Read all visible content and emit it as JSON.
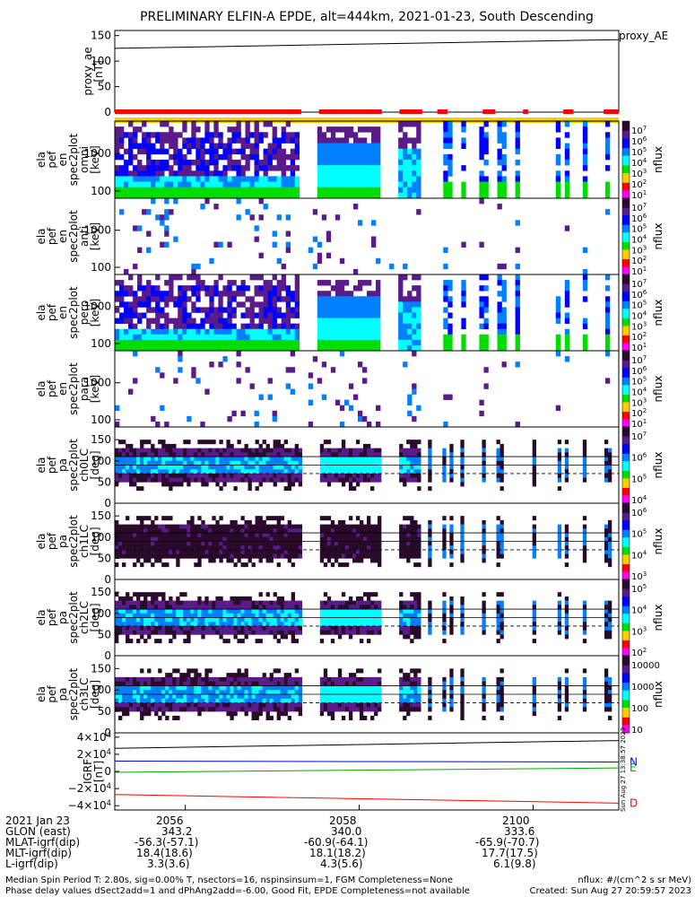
{
  "title": "PRELIMINARY ELFIN-A EPDE, alt=444km, 2021-01-23, South Descending",
  "panels": [
    {
      "ylabel": [
        "proxy_ae",
        "[nT]"
      ],
      "right_label": "proxy_AE",
      "ticks": [
        "150",
        "100",
        "50",
        "0"
      ],
      "kind": "line"
    },
    {
      "ylabel": [
        "ela",
        "pef",
        "en",
        "spec2plot",
        "omni",
        "[keV]"
      ],
      "ticks": [
        "1000",
        "100"
      ],
      "cbar_label": "nflux",
      "cbar_ticks": [
        "10^7",
        "10^6",
        "10^5",
        "10^4",
        "10^3",
        "10^2",
        "10^1"
      ],
      "kind": "energy"
    },
    {
      "ylabel": [
        "ela",
        "pef",
        "en",
        "spec2plot",
        "anti",
        "[keV]"
      ],
      "ticks": [
        "1000",
        "100"
      ],
      "cbar_label": "nflux",
      "cbar_ticks": [
        "10^7",
        "10^6",
        "10^5",
        "10^4",
        "10^3",
        "10^2",
        "10^1"
      ],
      "kind": "energy"
    },
    {
      "ylabel": [
        "ela",
        "pef",
        "en",
        "spec2plot",
        "perp",
        "[keV]"
      ],
      "ticks": [
        "1000",
        "100"
      ],
      "cbar_label": "nflux",
      "cbar_ticks": [
        "10^7",
        "10^6",
        "10^5",
        "10^4",
        "10^3",
        "10^2",
        "10^1"
      ],
      "kind": "energy"
    },
    {
      "ylabel": [
        "ela",
        "pef",
        "en",
        "spec2plot",
        "para",
        "[keV]"
      ],
      "ticks": [
        "1000",
        "100"
      ],
      "cbar_label": "nflux",
      "cbar_ticks": [
        "10^7",
        "10^6",
        "10^5",
        "10^4",
        "10^3",
        "10^2",
        "10^1"
      ],
      "kind": "energy"
    },
    {
      "ylabel": [
        "ela",
        "pef",
        "pa",
        "spec2plot",
        "ch0LC",
        "[deg]"
      ],
      "ticks": [
        "150",
        "100",
        "50",
        "0"
      ],
      "cbar_label": "nflux",
      "cbar_ticks": [
        "10^7",
        "10^6",
        "10^5",
        "10^4"
      ],
      "kind": "pa"
    },
    {
      "ylabel": [
        "ela",
        "pef",
        "pa",
        "spec2plot",
        "ch1LC",
        "[deg]"
      ],
      "ticks": [
        "150",
        "100",
        "50",
        "0"
      ],
      "cbar_label": "nflux",
      "cbar_ticks": [
        "10^6",
        "10^5",
        "10^4",
        "10^3"
      ],
      "kind": "pa"
    },
    {
      "ylabel": [
        "ela",
        "pef",
        "pa",
        "spec2plot",
        "ch2LC",
        "[deg]"
      ],
      "ticks": [
        "150",
        "100",
        "50",
        "0"
      ],
      "cbar_label": "nflux",
      "cbar_ticks": [
        "10^5",
        "10^4",
        "10^3",
        "10^2"
      ],
      "kind": "pa"
    },
    {
      "ylabel": [
        "ela",
        "pef",
        "pa",
        "spec2plot",
        "ch3LC",
        "[deg]"
      ],
      "ticks": [
        "150",
        "100",
        "50",
        "0"
      ],
      "cbar_label": "nflux",
      "cbar_ticks": [
        "10000",
        "1000",
        "100",
        "10"
      ],
      "kind": "pa"
    },
    {
      "ylabel": [
        "IGRF",
        "[nT]"
      ],
      "ticks": [
        "4×10^4",
        "2×10^4",
        "0",
        "−2×10^4",
        "−4×10^4"
      ],
      "components": [
        "N",
        "E",
        "D"
      ],
      "kind": "igrf"
    }
  ],
  "chart_data": {
    "type": "heatmap",
    "title": "PRELIMINARY ELFIN-A EPDE, alt=444km, 2021-01-23, South Descending",
    "x_ticks": [
      "2056",
      "2058",
      "2100"
    ],
    "proxy_ae": {
      "ylabel": "proxy_ae [nT]",
      "ylim": [
        0,
        160
      ],
      "x": [
        0,
        1
      ],
      "y": [
        125,
        142
      ]
    },
    "energy_ylim_keV": [
      70,
      6000
    ],
    "pa_ylim_deg": [
      0,
      180
    ],
    "igrf": {
      "ylabel": "IGRF [nT]",
      "ylim": [
        -45000,
        45000
      ],
      "series": [
        {
          "name": "N",
          "color": "#0000ff",
          "y": [
            12000,
            11000
          ]
        },
        {
          "name": "E",
          "color": "#00aa00",
          "y": [
            -1000,
            4000
          ]
        },
        {
          "name": "D",
          "color": "#ff0000",
          "y": [
            -27000,
            -37000
          ]
        },
        {
          "color": "#000000",
          "y": [
            27000,
            36000
          ]
        }
      ]
    },
    "colorbar": [
      "#ff00ff",
      "#ff0000",
      "#ffcc00",
      "#00dd00",
      "#00ffff",
      "#0080ff",
      "#0000ff",
      "#5a1a8a",
      "#2a0a2a"
    ]
  },
  "orbit_table": {
    "row_labels": [
      "2021 Jan 23",
      "GLON (east)",
      "MLAT-igrf(dip)",
      "MLT-igrf(dip)",
      "L-igrf(dip)"
    ],
    "columns": [
      {
        "time": "2056",
        "values": [
          "343.2",
          "-56.3(-57.1)",
          "18.4(18.6)",
          "3.3(3.6)"
        ]
      },
      {
        "time": "2058",
        "values": [
          "340.0",
          "-60.9(-64.1)",
          "18.1(18.2)",
          "4.3(5.6)"
        ]
      },
      {
        "time": "2100",
        "values": [
          "333.6",
          "-65.9(-70.7)",
          "17.7(17.5)",
          "6.1(9.8)"
        ]
      }
    ]
  },
  "footer": {
    "line1": "Median Spin Period T: 2.80s, sig=0.00% T, nsectors=16, nspinsinsum=1, FGM Completeness=None",
    "line2": "Phase delay values dSect2add=1 and dPhAng2add=-6.00, Good Fit, EPDE Completeness=not available",
    "right1": "nflux: #/(cm^2 s sr MeV)",
    "right2": "Created: Sun Aug 27 20:59:57 2023"
  },
  "side_stamp": "Sun Aug 27 13:38:57 2023",
  "colors": {
    "red_bar": "#ff0000",
    "yellow_bar": "#ffcc00",
    "n": "#0000ff",
    "e": "#00aa00",
    "d": "#ff0000"
  }
}
